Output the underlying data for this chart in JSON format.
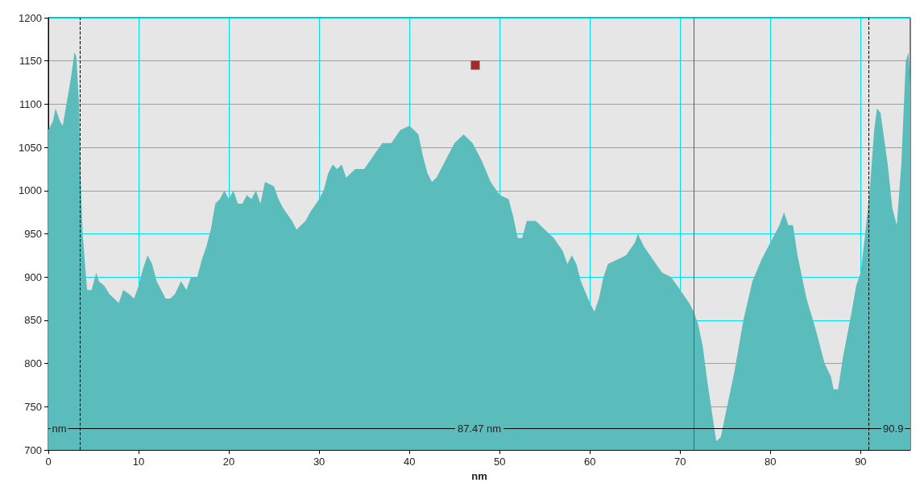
{
  "chart_data": {
    "type": "area",
    "xlabel": "nm",
    "xlim": [
      0,
      95.5
    ],
    "xticks": [
      0,
      10,
      20,
      30,
      40,
      50,
      60,
      70,
      80,
      90
    ],
    "ylim": [
      700,
      1200
    ],
    "yticks": [
      700,
      750,
      800,
      850,
      900,
      950,
      1000,
      1050,
      1100,
      1150,
      1200
    ],
    "grid": true,
    "marker": "none",
    "series": [
      {
        "color": "#5bbcbc",
        "x": [
          0,
          0.5,
          0.8,
          1.3,
          1.6,
          2,
          2.5,
          2.9,
          3.1,
          3.4,
          3.6,
          3.8,
          4.1,
          4.3,
          4.8,
          5.3,
          5.6,
          6.2,
          6.8,
          7.3,
          7.8,
          8.3,
          9,
          9.5,
          10,
          10.5,
          11,
          11.5,
          12,
          12.5,
          13,
          13.5,
          14,
          14.7,
          15.3,
          15.8,
          16.5,
          17,
          17.5,
          18,
          18.5,
          19,
          19.5,
          20,
          20.5,
          21,
          21.5,
          22,
          22.5,
          23,
          23.5,
          24,
          25,
          25.5,
          26,
          27,
          27.5,
          28,
          28.5,
          29,
          30,
          30.5,
          31,
          31.5,
          32,
          32.5,
          33,
          34,
          35,
          36,
          37,
          38,
          39,
          40,
          40.5,
          41,
          41.5,
          42,
          42.5,
          43,
          44,
          45,
          46,
          47,
          48,
          49,
          50,
          51,
          51.5,
          52,
          52.5,
          53,
          54,
          55,
          56,
          57,
          57.5,
          58,
          58.5,
          59,
          60,
          60.5,
          61,
          61.5,
          62,
          63,
          64,
          65,
          65.3,
          66,
          67,
          68,
          69,
          70,
          71,
          71.5,
          72,
          72.5,
          73,
          73.5,
          74,
          74.5,
          75,
          76,
          77,
          78,
          79,
          80,
          81,
          81.5,
          82,
          82.5,
          83,
          84,
          85,
          86,
          86.7,
          87,
          87.5,
          88,
          89,
          89.5,
          90,
          90.5,
          91,
          91.5,
          91.8,
          92.2,
          93,
          93.5,
          94,
          94.5,
          95,
          95.3,
          95.5
        ],
        "values": [
          1070,
          1080,
          1095,
          1080,
          1075,
          1100,
          1130,
          1160,
          1155,
          1100,
          1010,
          950,
          910,
          885,
          885,
          905,
          895,
          890,
          880,
          875,
          870,
          885,
          880,
          875,
          890,
          910,
          925,
          915,
          895,
          885,
          875,
          875,
          880,
          895,
          885,
          900,
          900,
          920,
          935,
          955,
          985,
          990,
          1000,
          990,
          1000,
          985,
          985,
          995,
          990,
          1000,
          985,
          1010,
          1005,
          990,
          980,
          965,
          955,
          960,
          965,
          975,
          990,
          1000,
          1020,
          1030,
          1025,
          1030,
          1015,
          1025,
          1025,
          1040,
          1055,
          1055,
          1070,
          1075,
          1070,
          1065,
          1040,
          1020,
          1010,
          1015,
          1035,
          1055,
          1065,
          1055,
          1035,
          1010,
          995,
          990,
          970,
          945,
          945,
          965,
          965,
          955,
          945,
          930,
          915,
          925,
          915,
          895,
          870,
          860,
          875,
          900,
          915,
          920,
          925,
          940,
          950,
          935,
          920,
          905,
          900,
          885,
          870,
          860,
          845,
          820,
          780,
          745,
          710,
          715,
          740,
          790,
          850,
          895,
          920,
          940,
          960,
          975,
          960,
          960,
          925,
          875,
          840,
          800,
          785,
          770,
          770,
          805,
          860,
          890,
          905,
          950,
          1000,
          1070,
          1095,
          1090,
          1030,
          980,
          960,
          1030,
          1150,
          1160,
          1120
        ]
      },
      {
        "type": "scatter",
        "marker": "square",
        "color": "#8b0000",
        "x": [
          47.3
        ],
        "values": [
          1145
        ]
      }
    ],
    "ref_lines": [
      {
        "axis": "x",
        "value": 3.5,
        "color": "#000000",
        "line_style": "dashed"
      },
      {
        "axis": "x",
        "value": 90.9,
        "color": "#000000",
        "line_style": "dashed"
      },
      {
        "axis": "x",
        "value": 71.5,
        "color": "#1a6fa0",
        "line_style": "solid"
      },
      {
        "axis": "y",
        "value": 725,
        "label": "87.47 nm",
        "color": "#000000",
        "line_style": "solid"
      }
    ],
    "annotations": [
      {
        "text": "nm",
        "x": 1.2,
        "y": 725
      },
      {
        "text": "90.9",
        "x": 93.6,
        "y": 725
      }
    ]
  }
}
